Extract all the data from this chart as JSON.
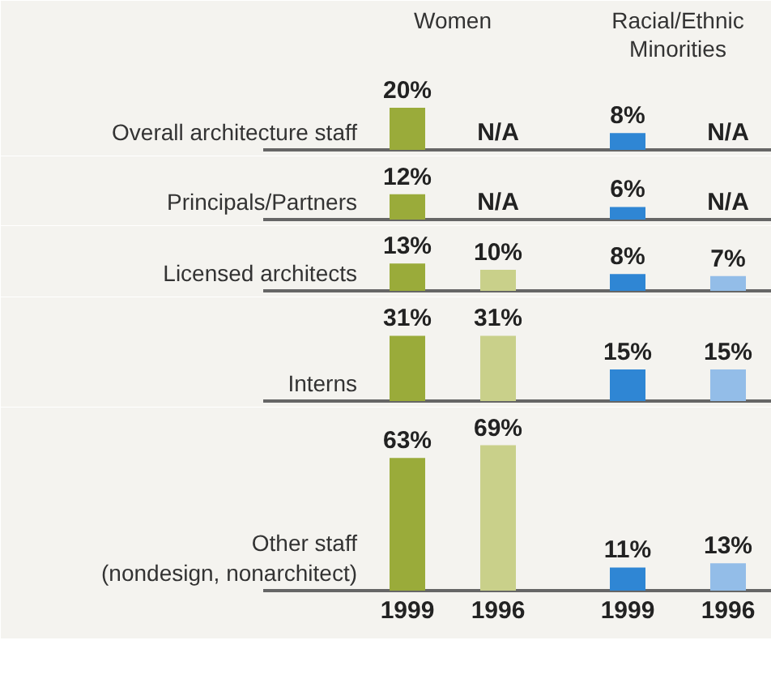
{
  "chart_data": [
    {
      "type": "bar",
      "title": "Overall architecture staff",
      "categories": [
        null,
        null,
        null,
        null
      ],
      "values": [
        20,
        null,
        8,
        null
      ],
      "value_labels": [
        "20%",
        "N/A",
        "8%",
        "N/A"
      ],
      "colors": [
        "#9aab3a",
        "#c9d08a",
        "#2f86d4",
        "#93bde8"
      ],
      "annotations": [
        "Women",
        "Racial/Ethnic\nMinorities"
      ]
    },
    {
      "type": "bar",
      "title": "Principals/Partners",
      "categories": [
        null,
        null,
        null,
        null
      ],
      "values": [
        12,
        null,
        6,
        null
      ],
      "value_labels": [
        "12%",
        "N/A",
        "6%",
        "N/A"
      ],
      "colors": [
        "#9aab3a",
        "#c9d08a",
        "#2f86d4",
        "#93bde8"
      ]
    },
    {
      "type": "bar",
      "title": "Licensed architects",
      "categories": [
        null,
        null,
        null,
        null
      ],
      "values": [
        13,
        10,
        8,
        7
      ],
      "value_labels": [
        "13%",
        "10%",
        "8%",
        "7%"
      ],
      "colors": [
        "#9aab3a",
        "#c9d08a",
        "#2f86d4",
        "#93bde8"
      ]
    },
    {
      "type": "bar",
      "title": "Interns",
      "categories": [
        null,
        null,
        null,
        null
      ],
      "values": [
        31,
        31,
        15,
        15
      ],
      "value_labels": [
        "31%",
        "31%",
        "15%",
        "15%"
      ],
      "colors": [
        "#9aab3a",
        "#c9d08a",
        "#2f86d4",
        "#93bde8"
      ]
    },
    {
      "type": "bar",
      "title": "Other staff\n(nondesign, nonarchitect)",
      "categories": [
        "1999",
        "1996",
        "1999",
        "1996"
      ],
      "values": [
        63,
        69,
        11,
        13
      ],
      "value_labels": [
        "63%",
        "69%",
        "11%",
        "13%"
      ],
      "colors": [
        "#9aab3a",
        "#c9d08a",
        "#2f86d4",
        "#93bde8"
      ]
    }
  ]
}
